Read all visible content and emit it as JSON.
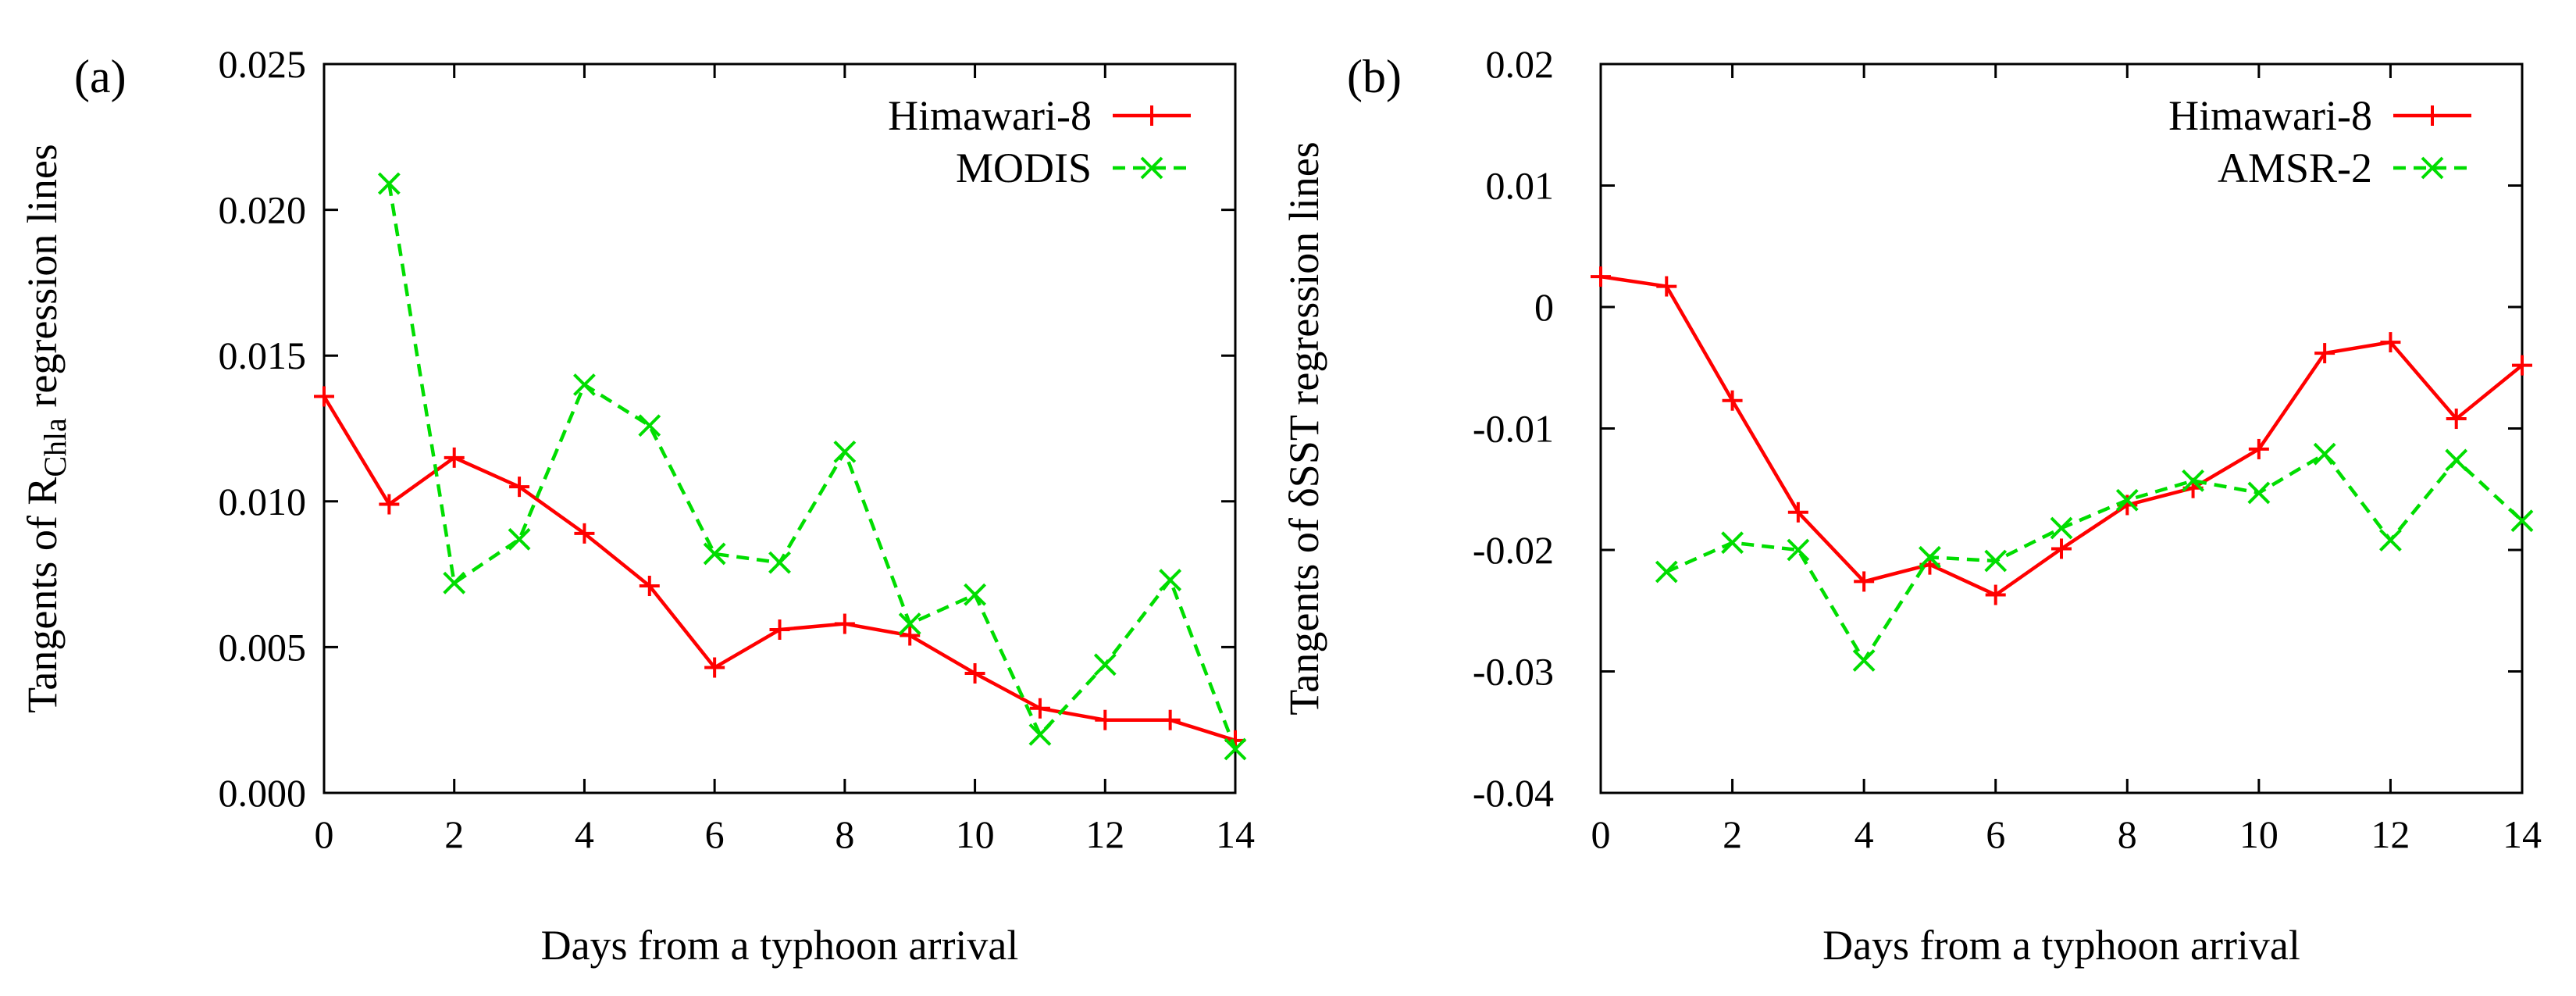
{
  "chart_data": [
    {
      "panel_label": "(a)",
      "type": "line",
      "xlabel": "Days from a typhoon arrival",
      "ylabel": {
        "prefix": "Tangents of R",
        "subscript": "Chla",
        "suffix": " regression lines"
      },
      "xlim": [
        0,
        14
      ],
      "ylim": [
        0,
        0.025
      ],
      "xticks": [
        0,
        2,
        4,
        6,
        8,
        10,
        12,
        14
      ],
      "yticks": [
        {
          "value": 0.0,
          "label": "0.000"
        },
        {
          "value": 0.005,
          "label": "0.005"
        },
        {
          "value": 0.01,
          "label": "0.010"
        },
        {
          "value": 0.015,
          "label": "0.015"
        },
        {
          "value": 0.02,
          "label": "0.020"
        },
        {
          "value": 0.025,
          "label": "0.025"
        }
      ],
      "legend_position": "top-right",
      "series": [
        {
          "name": "Himawari-8",
          "color": "#ff0000",
          "marker": "plus",
          "dash": "solid",
          "x": [
            0,
            1,
            2,
            3,
            4,
            5,
            6,
            7,
            8,
            9,
            10,
            11,
            12,
            13,
            14
          ],
          "values": [
            0.0136,
            0.0099,
            0.0115,
            0.0105,
            0.0089,
            0.0071,
            0.0043,
            0.0056,
            0.0058,
            0.0054,
            0.0041,
            0.0029,
            0.0025,
            0.0025,
            0.0018
          ]
        },
        {
          "name": "MODIS",
          "color": "#00dd00",
          "marker": "cross",
          "dash": "dashed",
          "x": [
            1,
            2,
            3,
            4,
            5,
            6,
            7,
            8,
            9,
            10,
            11,
            12,
            13,
            14
          ],
          "values": [
            0.0209,
            0.0072,
            0.0087,
            0.014,
            0.0126,
            0.0082,
            0.0079,
            0.0117,
            0.0058,
            0.0068,
            0.002,
            0.0044,
            0.0073,
            0.0015
          ]
        }
      ]
    },
    {
      "panel_label": "(b)",
      "type": "line",
      "xlabel": "Days from a typhoon arrival",
      "ylabel": {
        "prefix": "Tangents of δSST regression lines",
        "subscript": "",
        "suffix": ""
      },
      "xlim": [
        0,
        14
      ],
      "ylim": [
        -0.04,
        0.02
      ],
      "xticks": [
        0,
        2,
        4,
        6,
        8,
        10,
        12,
        14
      ],
      "yticks": [
        {
          "value": -0.04,
          "label": "-0.04"
        },
        {
          "value": -0.03,
          "label": "-0.03"
        },
        {
          "value": -0.02,
          "label": "-0.02"
        },
        {
          "value": -0.01,
          "label": "-0.01"
        },
        {
          "value": 0,
          "label": "0"
        },
        {
          "value": 0.01,
          "label": "0.01"
        },
        {
          "value": 0.02,
          "label": "0.02"
        }
      ],
      "legend_position": "top-right",
      "series": [
        {
          "name": "Himawari-8",
          "color": "#ff0000",
          "marker": "plus",
          "dash": "solid",
          "x": [
            0,
            1,
            2,
            3,
            4,
            5,
            6,
            7,
            8,
            9,
            10,
            11,
            12,
            13,
            14
          ],
          "values": [
            0.0025,
            0.0017,
            -0.0077,
            -0.0169,
            -0.0226,
            -0.0212,
            -0.0237,
            -0.0199,
            -0.0163,
            -0.0149,
            -0.0117,
            -0.0038,
            -0.0029,
            -0.0092,
            -0.0048
          ]
        },
        {
          "name": "AMSR-2",
          "color": "#00dd00",
          "marker": "cross",
          "dash": "dashed",
          "x": [
            1,
            2,
            3,
            4,
            5,
            6,
            7,
            8,
            9,
            10,
            11,
            12,
            13,
            14
          ],
          "values": [
            -0.0218,
            -0.0194,
            -0.02,
            -0.0291,
            -0.0206,
            -0.0209,
            -0.0182,
            -0.0159,
            -0.0143,
            -0.0153,
            -0.0121,
            -0.0192,
            -0.0126,
            -0.0176
          ]
        }
      ]
    }
  ]
}
